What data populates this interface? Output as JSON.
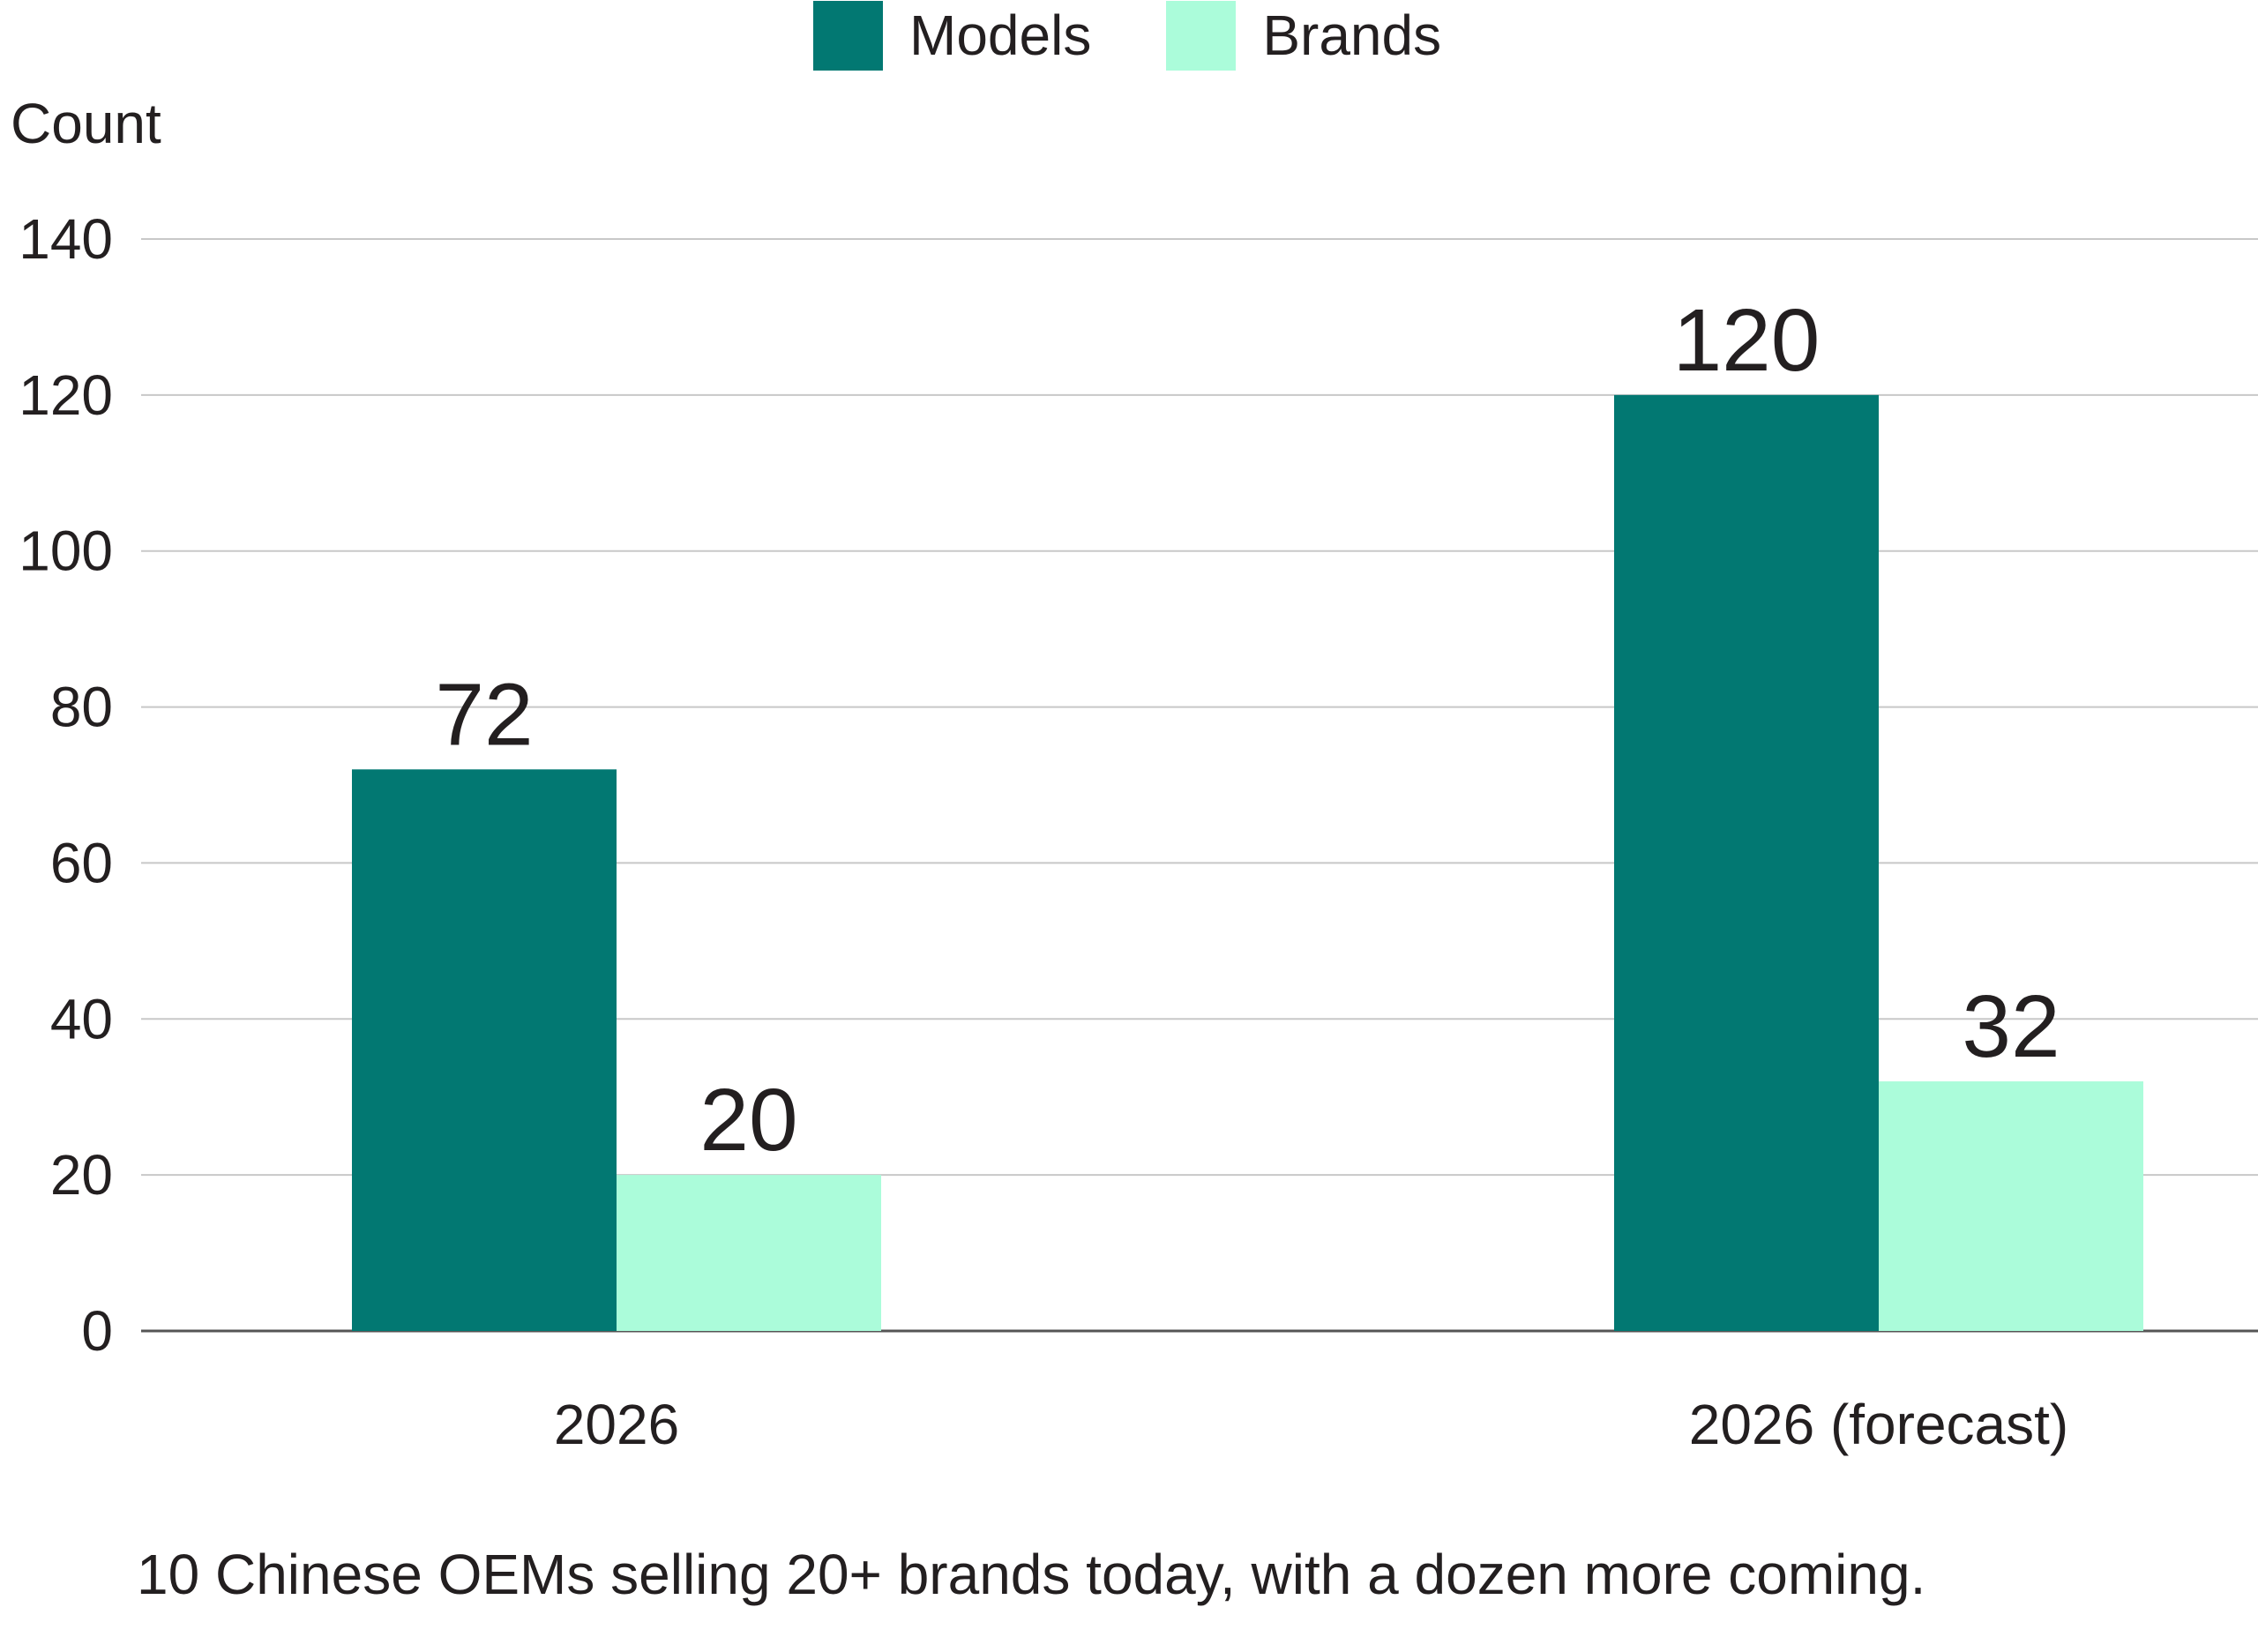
{
  "chart_data": {
    "type": "bar",
    "title": "",
    "xlabel": "",
    "ylabel": "Count",
    "ylim": [
      0,
      140
    ],
    "yticks": [
      0,
      20,
      40,
      60,
      80,
      100,
      120,
      140
    ],
    "grid": true,
    "legend_position": "top-center",
    "categories": [
      "2026",
      "2026 (forecast)"
    ],
    "series": [
      {
        "name": "Models",
        "color": "#027872",
        "values": [
          72,
          120
        ],
        "labels": [
          "72",
          "120"
        ]
      },
      {
        "name": "Brands",
        "color": "#abfcda",
        "values": [
          20,
          32
        ],
        "labels": [
          "20",
          "32"
        ]
      }
    ],
    "caption": "10 Chinese OEMs selling 20+ brands today, with a dozen more coming."
  },
  "colors": {
    "gridline": "#c8c8c8",
    "axis": "#555555",
    "text": "#231f20"
  }
}
